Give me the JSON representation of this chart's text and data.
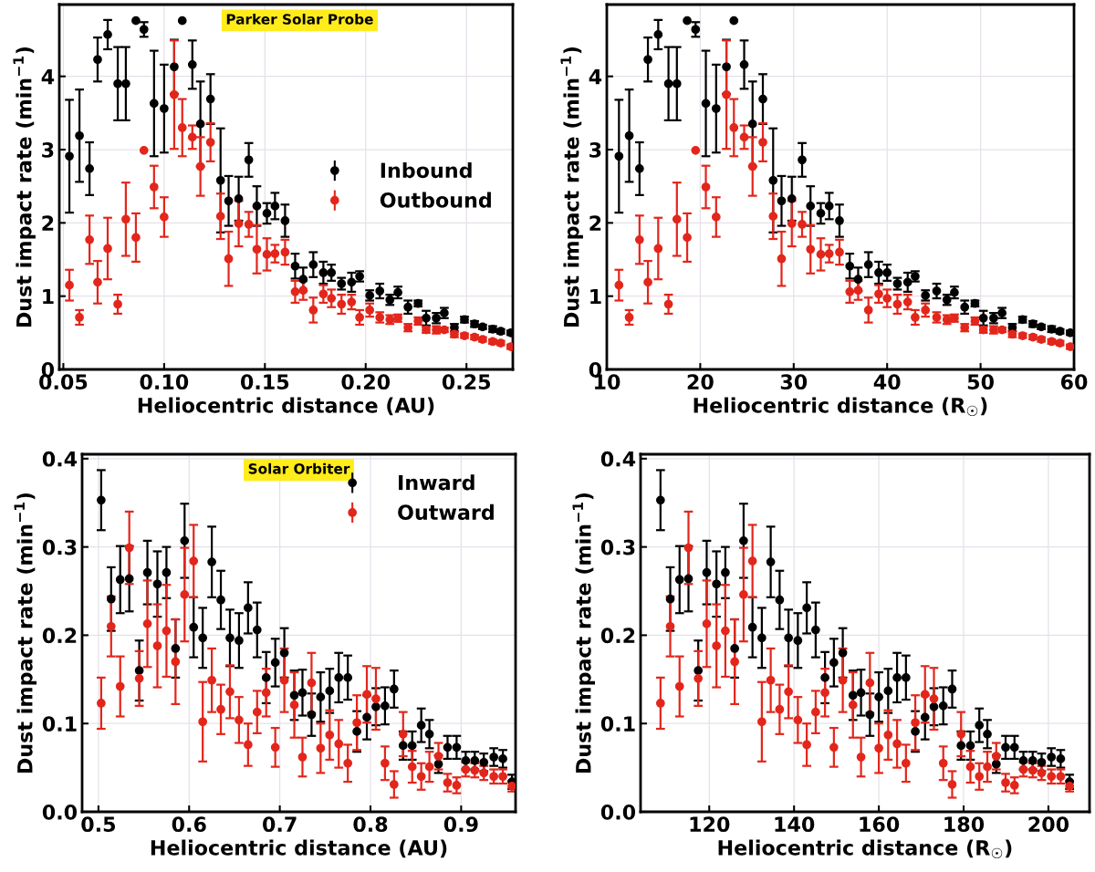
{
  "chart_data": [
    {
      "type": "scatter",
      "xlabel": "Heliocentric distance (AU)",
      "ylabel": "Dust impact rate (min$^{−1}$)",
      "xlim": [
        0.048,
        0.273
      ],
      "ylim": [
        0,
        4.98
      ],
      "xticks": [
        {
          "value": 0.05,
          "label": "0.05"
        },
        {
          "value": 0.1,
          "label": "0.10"
        },
        0.15,
        {
          "value": 0.2,
          "label": "0.20"
        },
        0.25
      ],
      "yticks": [
        0,
        1,
        2,
        3,
        4
      ],
      "grid": true,
      "marker": "circle",
      "legend": "center right",
      "annotations": [
        "Parker Solar Probe"
      ],
      "series": [
        {
          "name": "Inbound",
          "color": "#000000",
          "x": [
            0.053,
            0.058,
            0.063,
            0.067,
            0.072,
            0.077,
            0.081,
            0.086,
            0.09,
            0.095,
            0.1,
            0.105,
            0.109,
            0.114,
            0.118,
            0.123,
            0.128,
            0.132,
            0.137,
            0.142,
            0.146,
            0.151,
            0.155,
            0.16,
            0.165,
            0.169,
            0.174,
            0.179,
            0.183,
            0.188,
            0.193,
            0.197,
            0.202,
            0.207,
            0.212,
            0.216,
            0.221,
            0.226,
            0.23,
            0.235,
            0.239,
            0.244,
            0.249,
            0.254,
            0.258,
            0.263,
            0.267,
            0.272
          ],
          "values": [
            2.91,
            3.19,
            2.74,
            4.23,
            4.57,
            3.9,
            3.9,
            4.76,
            4.64,
            3.63,
            3.56,
            4.13,
            4.76,
            4.16,
            3.35,
            3.69,
            2.58,
            2.3,
            2.33,
            2.86,
            2.23,
            2.13,
            2.23,
            2.03,
            1.41,
            1.23,
            1.43,
            1.32,
            1.32,
            1.17,
            1.19,
            1.27,
            1.01,
            1.07,
            0.95,
            1.05,
            0.85,
            0.9,
            0.7,
            0.7,
            0.77,
            0.57,
            0.68,
            0.62,
            0.58,
            0.55,
            0.52,
            0.5
          ],
          "errors": [
            0.77,
            0.63,
            0.36,
            0.3,
            0.2,
            0.5,
            0.5,
            null,
            0.1,
            0.72,
            0.6,
            0.37,
            null,
            0.33,
            0.58,
            0.34,
            0.71,
            0.34,
            0.3,
            0.23,
            0.27,
            0.14,
            0.18,
            0.22,
            0.17,
            0.16,
            0.17,
            0.15,
            0.11,
            0.08,
            0.13,
            0.07,
            0.07,
            0.1,
            0.07,
            0.08,
            0.09,
            0.04,
            0.1,
            0.07,
            0.07,
            0.05,
            0.04,
            0.04,
            0.03,
            0.04,
            0.03,
            0.03
          ]
        },
        {
          "name": "Outbound",
          "color": "#e3261b",
          "x": [
            0.053,
            0.058,
            0.063,
            0.067,
            0.072,
            0.077,
            0.081,
            0.086,
            0.09,
            0.095,
            0.1,
            0.105,
            0.109,
            0.114,
            0.118,
            0.123,
            0.128,
            0.132,
            0.137,
            0.142,
            0.146,
            0.151,
            0.155,
            0.16,
            0.165,
            0.169,
            0.174,
            0.179,
            0.183,
            0.188,
            0.193,
            0.197,
            0.202,
            0.207,
            0.212,
            0.216,
            0.221,
            0.226,
            0.23,
            0.235,
            0.239,
            0.244,
            0.249,
            0.254,
            0.258,
            0.263,
            0.267,
            0.272
          ],
          "values": [
            1.15,
            0.71,
            1.77,
            1.19,
            1.65,
            0.89,
            2.05,
            1.8,
            2.99,
            2.49,
            2.08,
            3.75,
            3.3,
            3.17,
            2.77,
            3.1,
            2.09,
            1.51,
            1.99,
            1.98,
            1.64,
            1.57,
            1.58,
            1.6,
            1.06,
            1.08,
            0.81,
            1.03,
            0.97,
            0.89,
            0.92,
            0.71,
            0.81,
            0.71,
            0.68,
            0.7,
            0.57,
            0.66,
            0.54,
            0.54,
            0.54,
            0.48,
            0.46,
            0.44,
            0.41,
            0.38,
            0.36,
            0.31
          ],
          "errors": [
            0.21,
            0.1,
            0.33,
            0.29,
            0.42,
            0.13,
            0.5,
            0.33,
            null,
            0.29,
            0.27,
            0.74,
            0.39,
            0.16,
            0.4,
            0.26,
            0.31,
            0.37,
            0.31,
            0.17,
            0.33,
            0.22,
            0.12,
            0.17,
            0.15,
            0.13,
            0.17,
            0.12,
            0.12,
            0.13,
            0.1,
            0.1,
            0.09,
            0.07,
            0.06,
            0.05,
            0.05,
            0.05,
            0.04,
            0.05,
            0.03,
            0.04,
            0.03,
            0.03,
            0.03,
            0.03,
            0.03,
            0.03
          ]
        }
      ]
    },
    {
      "type": "scatter",
      "xlabel": "Heliocentric distance (R$_{☉}$)",
      "ylabel": "Dust impact rate (min$^{−1}$)",
      "xlim": [
        10,
        60
      ],
      "ylim": [
        0,
        4.98
      ],
      "xticks": [
        10,
        20,
        30,
        40,
        50,
        60
      ],
      "yticks": [
        0,
        1,
        2,
        3,
        4
      ],
      "grid": true,
      "marker": "circle",
      "series": [
        {
          "color": "#000000",
          "x": [
            11.3,
            12.4,
            13.5,
            14.4,
            15.5,
            16.6,
            17.5,
            18.6,
            19.5,
            20.6,
            21.7,
            22.8,
            23.6,
            24.7,
            25.6,
            26.7,
            27.8,
            28.7,
            29.8,
            30.9,
            31.8,
            32.9,
            33.8,
            34.9,
            36.0,
            36.9,
            38.0,
            39.1,
            40.0,
            41.1,
            42.2,
            43.0,
            44.1,
            45.3,
            46.4,
            47.2,
            48.3,
            49.4,
            50.3,
            51.4,
            52.3,
            53.4,
            54.5,
            55.6,
            56.5,
            57.6,
            58.5,
            59.6
          ],
          "values": [
            2.91,
            3.19,
            2.74,
            4.23,
            4.57,
            3.9,
            3.9,
            4.76,
            4.64,
            3.63,
            3.56,
            4.13,
            4.76,
            4.16,
            3.35,
            3.69,
            2.58,
            2.3,
            2.33,
            2.86,
            2.23,
            2.13,
            2.23,
            2.03,
            1.41,
            1.23,
            1.43,
            1.32,
            1.32,
            1.17,
            1.19,
            1.27,
            1.01,
            1.07,
            0.95,
            1.05,
            0.85,
            0.9,
            0.7,
            0.7,
            0.77,
            0.57,
            0.68,
            0.62,
            0.58,
            0.55,
            0.52,
            0.5
          ],
          "errors": [
            0.77,
            0.63,
            0.36,
            0.3,
            0.2,
            0.5,
            0.5,
            null,
            0.1,
            0.72,
            0.6,
            0.37,
            null,
            0.33,
            0.58,
            0.34,
            0.71,
            0.34,
            0.3,
            0.23,
            0.27,
            0.14,
            0.18,
            0.22,
            0.17,
            0.16,
            0.17,
            0.15,
            0.11,
            0.08,
            0.13,
            0.07,
            0.07,
            0.1,
            0.07,
            0.08,
            0.09,
            0.04,
            0.1,
            0.07,
            0.07,
            0.05,
            0.04,
            0.04,
            0.03,
            0.04,
            0.03,
            0.03
          ]
        },
        {
          "color": "#e3261b",
          "x": [
            11.3,
            12.4,
            13.5,
            14.4,
            15.5,
            16.6,
            17.5,
            18.6,
            19.5,
            20.6,
            21.7,
            22.8,
            23.6,
            24.7,
            25.6,
            26.7,
            27.8,
            28.7,
            29.8,
            30.9,
            31.8,
            32.9,
            33.8,
            34.9,
            36.0,
            36.9,
            38.0,
            39.1,
            40.0,
            41.1,
            42.2,
            43.0,
            44.1,
            45.3,
            46.4,
            47.2,
            48.3,
            49.4,
            50.3,
            51.4,
            52.3,
            53.4,
            54.5,
            55.6,
            56.5,
            57.6,
            58.5,
            59.6
          ],
          "values": [
            1.15,
            0.71,
            1.77,
            1.19,
            1.65,
            0.89,
            2.05,
            1.8,
            2.99,
            2.49,
            2.08,
            3.75,
            3.3,
            3.17,
            2.77,
            3.1,
            2.09,
            1.51,
            1.99,
            1.98,
            1.64,
            1.57,
            1.58,
            1.6,
            1.06,
            1.08,
            0.81,
            1.03,
            0.97,
            0.89,
            0.92,
            0.71,
            0.81,
            0.71,
            0.68,
            0.7,
            0.57,
            0.66,
            0.54,
            0.54,
            0.54,
            0.48,
            0.46,
            0.44,
            0.41,
            0.38,
            0.36,
            0.31
          ],
          "errors": [
            0.21,
            0.1,
            0.33,
            0.29,
            0.42,
            0.13,
            0.5,
            0.33,
            null,
            0.29,
            0.27,
            0.74,
            0.39,
            0.16,
            0.4,
            0.26,
            0.31,
            0.37,
            0.31,
            0.17,
            0.33,
            0.22,
            0.12,
            0.17,
            0.15,
            0.13,
            0.17,
            0.12,
            0.12,
            0.13,
            0.1,
            0.1,
            0.09,
            0.07,
            0.06,
            0.05,
            0.05,
            0.05,
            0.04,
            0.05,
            0.03,
            0.04,
            0.03,
            0.03,
            0.03,
            0.03,
            0.03,
            0.03
          ]
        }
      ]
    },
    {
      "type": "scatter",
      "xlabel": "Heliocentric distance (AU)",
      "ylabel": "Dust impact rate (min$^{−1}$)",
      "xlim": [
        0.482,
        0.96
      ],
      "ylim": [
        0,
        0.405
      ],
      "xticks": [
        0.5,
        0.6,
        0.7,
        0.8,
        0.9
      ],
      "yticks": [
        {
          "value": 0,
          "label": "0.0"
        },
        {
          "value": 0.1,
          "label": "0.1"
        },
        {
          "value": 0.2,
          "label": "0.2"
        },
        {
          "value": 0.3,
          "label": "0.3"
        },
        {
          "value": 0.4,
          "label": "0.4"
        }
      ],
      "grid": true,
      "marker": "circle",
      "legend": "top right",
      "annotations": [
        "Solar Orbiter"
      ],
      "series": [
        {
          "name": "Inward",
          "color": "#000000",
          "x": [
            0.503,
            0.514,
            0.524,
            0.534,
            0.545,
            0.554,
            0.565,
            0.575,
            0.585,
            0.595,
            0.605,
            0.615,
            0.625,
            0.635,
            0.645,
            0.655,
            0.665,
            0.675,
            0.685,
            0.695,
            0.705,
            0.716,
            0.725,
            0.735,
            0.745,
            0.755,
            0.765,
            0.775,
            0.785,
            0.796,
            0.806,
            0.816,
            0.826,
            0.836,
            0.846,
            0.856,
            0.865,
            0.875,
            0.885,
            0.895,
            0.905,
            0.915,
            0.925,
            0.936,
            0.946,
            0.956
          ],
          "values": [
            0.353,
            0.241,
            0.263,
            0.264,
            0.16,
            0.271,
            0.258,
            0.271,
            0.185,
            0.307,
            0.209,
            0.197,
            0.283,
            0.24,
            0.197,
            0.194,
            0.231,
            0.206,
            0.152,
            0.169,
            0.18,
            0.132,
            0.135,
            0.11,
            0.13,
            0.137,
            0.152,
            0.152,
            0.091,
            0.107,
            0.119,
            0.12,
            0.139,
            0.075,
            0.075,
            0.098,
            0.088,
            0.054,
            0.073,
            0.073,
            0.058,
            0.058,
            0.056,
            0.062,
            0.06,
            0.034
          ],
          "errors": [
            0.034,
            0.036,
            0.038,
            0.037,
            0.034,
            0.036,
            0.037,
            0.029,
            0.033,
            0.042,
            0.034,
            0.034,
            0.04,
            0.033,
            0.032,
            0.031,
            0.029,
            0.031,
            0.029,
            0.027,
            0.028,
            0.028,
            0.026,
            0.024,
            0.028,
            0.025,
            0.028,
            0.025,
            0.023,
            0.025,
            0.021,
            0.021,
            0.021,
            0.016,
            0.016,
            0.019,
            0.016,
            0.01,
            0.013,
            0.013,
            0.01,
            0.01,
            0.01,
            0.01,
            0.01,
            0.008
          ]
        },
        {
          "name": "Outward",
          "color": "#e3261b",
          "x": [
            0.503,
            0.514,
            0.524,
            0.534,
            0.545,
            0.554,
            0.565,
            0.575,
            0.585,
            0.595,
            0.605,
            0.615,
            0.625,
            0.635,
            0.645,
            0.655,
            0.665,
            0.675,
            0.685,
            0.695,
            0.705,
            0.716,
            0.725,
            0.735,
            0.745,
            0.755,
            0.765,
            0.775,
            0.785,
            0.796,
            0.806,
            0.816,
            0.826,
            0.836,
            0.846,
            0.856,
            0.865,
            0.875,
            0.885,
            0.895,
            0.905,
            0.915,
            0.925,
            0.936,
            0.946,
            0.956
          ],
          "values": [
            0.123,
            0.21,
            0.142,
            0.299,
            0.151,
            0.213,
            0.188,
            0.205,
            0.17,
            0.246,
            0.284,
            0.102,
            0.149,
            0.116,
            0.136,
            0.104,
            0.076,
            0.113,
            0.135,
            0.073,
            0.149,
            0.121,
            0.062,
            0.146,
            0.072,
            0.087,
            0.077,
            0.055,
            0.101,
            0.133,
            0.128,
            0.055,
            0.031,
            0.088,
            0.051,
            0.04,
            0.051,
            0.063,
            0.033,
            0.03,
            0.048,
            0.047,
            0.044,
            0.04,
            0.04,
            0.029
          ],
          "errors": [
            0.029,
            0.034,
            0.034,
            0.041,
            0.031,
            0.049,
            0.047,
            0.052,
            0.048,
            0.053,
            0.041,
            0.045,
            0.036,
            0.028,
            0.03,
            0.026,
            0.024,
            0.024,
            0.027,
            0.022,
            0.036,
            0.037,
            0.022,
            0.034,
            0.028,
            0.028,
            0.027,
            0.021,
            0.031,
            0.032,
            0.035,
            0.019,
            0.015,
            0.025,
            0.018,
            0.015,
            0.017,
            0.015,
            0.01,
            0.009,
            0.008,
            0.008,
            0.008,
            0.008,
            0.008,
            0.006
          ]
        }
      ]
    },
    {
      "type": "scatter",
      "xlabel": "Heliocentric distance (R$_{☉}$)",
      "ylabel": "Dust impact rate (min$^{−1}$)",
      "xlim": [
        103.8,
        209.7
      ],
      "ylim": [
        0,
        0.405
      ],
      "xticks": [
        120,
        140,
        160,
        180,
        200
      ],
      "yticks": [
        {
          "value": 0,
          "label": "0.0"
        },
        {
          "value": 0.1,
          "label": "0.1"
        },
        {
          "value": 0.2,
          "label": "0.2"
        },
        {
          "value": 0.3,
          "label": "0.3"
        },
        {
          "value": 0.4,
          "label": "0.4"
        }
      ],
      "grid": true,
      "marker": "circle",
      "series": [
        {
          "color": "#000000",
          "x": [
            108.5,
            110.8,
            113.0,
            115.1,
            117.4,
            119.4,
            121.7,
            123.8,
            126.0,
            128.1,
            130.2,
            132.4,
            134.5,
            136.6,
            138.7,
            140.9,
            143.0,
            145.1,
            147.3,
            149.4,
            151.5,
            153.9,
            155.8,
            157.9,
            160.0,
            162.2,
            164.3,
            166.4,
            168.6,
            170.9,
            173.0,
            175.2,
            177.3,
            179.4,
            181.6,
            183.7,
            185.6,
            187.7,
            189.9,
            192.0,
            194.1,
            196.3,
            198.4,
            200.7,
            202.9,
            205.0
          ],
          "values": [
            0.353,
            0.241,
            0.263,
            0.264,
            0.16,
            0.271,
            0.258,
            0.271,
            0.185,
            0.307,
            0.209,
            0.197,
            0.283,
            0.24,
            0.197,
            0.194,
            0.231,
            0.206,
            0.152,
            0.169,
            0.18,
            0.132,
            0.135,
            0.11,
            0.13,
            0.137,
            0.152,
            0.152,
            0.091,
            0.107,
            0.119,
            0.12,
            0.139,
            0.075,
            0.075,
            0.098,
            0.088,
            0.054,
            0.073,
            0.073,
            0.058,
            0.058,
            0.056,
            0.062,
            0.06,
            0.034
          ],
          "errors": [
            0.034,
            0.036,
            0.038,
            0.037,
            0.034,
            0.036,
            0.037,
            0.029,
            0.033,
            0.042,
            0.034,
            0.034,
            0.04,
            0.033,
            0.032,
            0.031,
            0.029,
            0.031,
            0.029,
            0.027,
            0.028,
            0.028,
            0.026,
            0.024,
            0.028,
            0.025,
            0.028,
            0.025,
            0.023,
            0.025,
            0.021,
            0.021,
            0.021,
            0.016,
            0.016,
            0.019,
            0.016,
            0.01,
            0.013,
            0.013,
            0.01,
            0.01,
            0.01,
            0.01,
            0.01,
            0.008
          ]
        },
        {
          "color": "#e3261b",
          "x": [
            108.5,
            110.8,
            113.0,
            115.1,
            117.4,
            119.4,
            121.7,
            123.8,
            126.0,
            128.1,
            130.2,
            132.4,
            134.5,
            136.6,
            138.7,
            140.9,
            143.0,
            145.1,
            147.3,
            149.4,
            151.5,
            153.9,
            155.8,
            157.9,
            160.0,
            162.2,
            164.3,
            166.4,
            168.6,
            170.9,
            173.0,
            175.2,
            177.3,
            179.4,
            181.6,
            183.7,
            185.6,
            187.7,
            189.9,
            192.0,
            194.1,
            196.3,
            198.4,
            200.7,
            202.9,
            205.0
          ],
          "values": [
            0.123,
            0.21,
            0.142,
            0.299,
            0.151,
            0.213,
            0.188,
            0.205,
            0.17,
            0.246,
            0.284,
            0.102,
            0.149,
            0.116,
            0.136,
            0.104,
            0.076,
            0.113,
            0.135,
            0.073,
            0.149,
            0.121,
            0.062,
            0.146,
            0.072,
            0.087,
            0.077,
            0.055,
            0.101,
            0.133,
            0.128,
            0.055,
            0.031,
            0.088,
            0.051,
            0.04,
            0.051,
            0.063,
            0.033,
            0.03,
            0.048,
            0.047,
            0.044,
            0.04,
            0.04,
            0.029
          ],
          "errors": [
            0.029,
            0.034,
            0.034,
            0.041,
            0.031,
            0.049,
            0.047,
            0.052,
            0.048,
            0.053,
            0.041,
            0.045,
            0.036,
            0.028,
            0.03,
            0.026,
            0.024,
            0.024,
            0.027,
            0.022,
            0.036,
            0.037,
            0.022,
            0.034,
            0.028,
            0.028,
            0.027,
            0.021,
            0.031,
            0.032,
            0.035,
            0.019,
            0.015,
            0.025,
            0.018,
            0.015,
            0.017,
            0.015,
            0.01,
            0.009,
            0.008,
            0.008,
            0.008,
            0.008,
            0.008,
            0.006
          ]
        }
      ]
    }
  ]
}
